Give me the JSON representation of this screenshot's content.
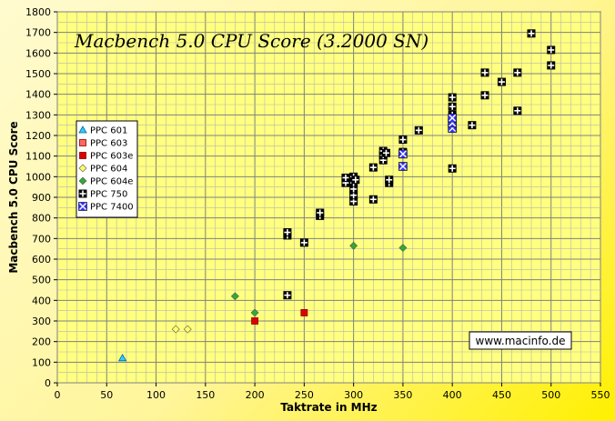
{
  "chart_data": {
    "type": "scatter",
    "title": "Macbench 5.0 CPU Score (3.2000 SN)",
    "xlabel": "Taktrate in MHz",
    "ylabel": "Macbench 5.0 CPU Score",
    "xlim": [
      0,
      550
    ],
    "ylim": [
      0,
      1800
    ],
    "x_ticks": [
      0,
      50,
      100,
      150,
      200,
      250,
      300,
      350,
      400,
      450,
      500,
      550
    ],
    "y_ticks": [
      0,
      100,
      200,
      300,
      400,
      500,
      600,
      700,
      800,
      900,
      1000,
      1100,
      1200,
      1300,
      1400,
      1500,
      1600,
      1700,
      1800
    ],
    "grid": true,
    "legend_position": "left",
    "credit": "www.macinfo.de",
    "series": [
      {
        "name": "PPC 601",
        "marker": "triangle",
        "color": "#33ccff",
        "points": [
          [
            66,
            120
          ]
        ]
      },
      {
        "name": "PPC 603",
        "marker": "square",
        "color": "#ff6666",
        "points": []
      },
      {
        "name": "PPC 603e",
        "marker": "square",
        "color": "#dd0000",
        "points": [
          [
            200,
            300
          ],
          [
            250,
            340
          ]
        ]
      },
      {
        "name": "PPC 604",
        "marker": "diamond",
        "color": "#ffff66",
        "points": [
          [
            120,
            260
          ],
          [
            132,
            260
          ]
        ]
      },
      {
        "name": "PPC 604e",
        "marker": "diamond",
        "color": "#33aa33",
        "points": [
          [
            180,
            420
          ],
          [
            200,
            340
          ],
          [
            300,
            665
          ],
          [
            350,
            655
          ]
        ]
      },
      {
        "name": "PPC 750",
        "marker": "cross",
        "color": "#000000",
        "points": [
          [
            233,
            425
          ],
          [
            233,
            715
          ],
          [
            233,
            730
          ],
          [
            250,
            680
          ],
          [
            266,
            810
          ],
          [
            266,
            825
          ],
          [
            292,
            970
          ],
          [
            292,
            995
          ],
          [
            300,
            880
          ],
          [
            300,
            910
          ],
          [
            300,
            940
          ],
          [
            300,
            970
          ],
          [
            300,
            1000
          ],
          [
            302,
            985
          ],
          [
            320,
            890
          ],
          [
            320,
            1045
          ],
          [
            330,
            1080
          ],
          [
            330,
            1105
          ],
          [
            330,
            1125
          ],
          [
            333,
            1115
          ],
          [
            336,
            970
          ],
          [
            336,
            985
          ],
          [
            350,
            1120
          ],
          [
            350,
            1180
          ],
          [
            366,
            1225
          ],
          [
            400,
            1040
          ],
          [
            400,
            1300
          ],
          [
            400,
            1340
          ],
          [
            400,
            1385
          ],
          [
            420,
            1250
          ],
          [
            433,
            1395
          ],
          [
            433,
            1505
          ],
          [
            450,
            1460
          ],
          [
            466,
            1320
          ],
          [
            466,
            1505
          ],
          [
            480,
            1695
          ],
          [
            500,
            1540
          ],
          [
            500,
            1615
          ]
        ]
      },
      {
        "name": "PPC 7400",
        "marker": "x-square",
        "color": "#3333ff",
        "points": [
          [
            350,
            1050
          ],
          [
            350,
            1110
          ],
          [
            400,
            1235
          ],
          [
            400,
            1260
          ],
          [
            400,
            1285
          ]
        ]
      }
    ]
  }
}
